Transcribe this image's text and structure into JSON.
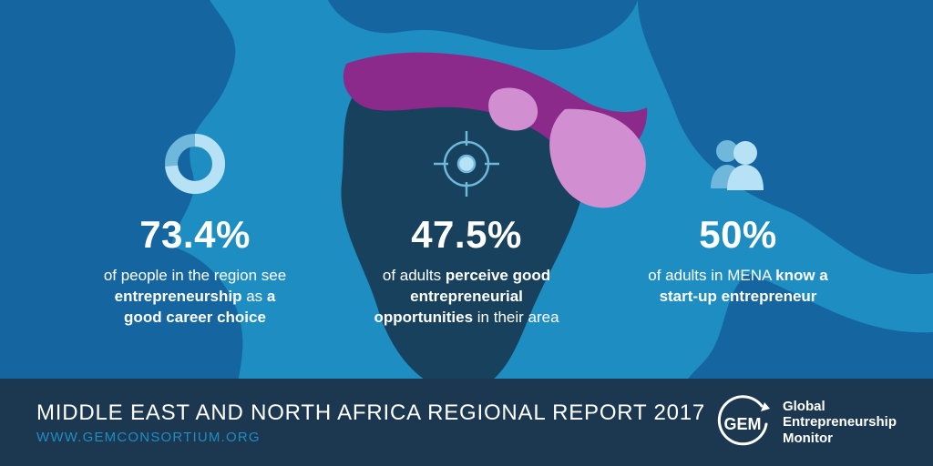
{
  "colors": {
    "bg_dark_navy": "#1c3850",
    "bg_blue": "#1e8dc2",
    "landmass_blue": "#1565a0",
    "mena_primary": "#8c2a8c",
    "mena_light": "#d18fd1",
    "africa_shadow": "#17415d",
    "icon_light": "#b7e2f5",
    "icon_stroke": "#6fb7db",
    "text_white": "#ffffff",
    "footer_link": "#1e8dc2"
  },
  "stats": [
    {
      "value": "73.4%",
      "icon": "donut",
      "caption_html": "of people in the region see <b>entrepreneurship</b> as <b>a good career choice</b>",
      "donut_pct": 0.734
    },
    {
      "value": "47.5%",
      "icon": "target",
      "caption_html": "of adults <b>perceive good entrepreneurial opportunities</b> in their area"
    },
    {
      "value": "50%",
      "icon": "people",
      "caption_html": "of adults in MENA <b>know a start-up entrepreneur</b>"
    }
  ],
  "footer": {
    "title": "Middle East and North Africa Regional Report 2017",
    "url": "WWW.GEMCONSORTIUM.ORG"
  },
  "logo": {
    "abbrev": "GEM",
    "full": "Global\nEntrepreneurship\nMonitor"
  }
}
